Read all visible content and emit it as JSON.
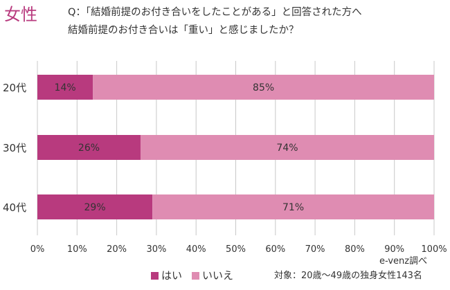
{
  "header": {
    "gender_label": "女性",
    "question_line1": "Q：「結婚前提のお付き合いをしたことがある」と回答された方へ",
    "question_line2": "結婚前提のお付き合いは「重い」と感じましたか？"
  },
  "colors": {
    "accent": "#b83a7e",
    "yes": "#b83a7e",
    "no": "#df8cb2",
    "grid": "#c8c8c8",
    "text": "#333333"
  },
  "chart_data": {
    "type": "bar",
    "orientation": "horizontal",
    "stacked": true,
    "percent_scale": true,
    "categories": [
      "20代",
      "30代",
      "40代"
    ],
    "series": [
      {
        "name": "はい",
        "values": [
          14,
          26,
          29
        ],
        "labels": [
          "14%",
          "26%",
          "29%"
        ]
      },
      {
        "name": "いいえ",
        "values": [
          85,
          74,
          71
        ],
        "labels": [
          "85%",
          "74%",
          "71%"
        ]
      }
    ],
    "xlim": [
      0,
      100
    ],
    "x_ticks": [
      0,
      10,
      20,
      30,
      40,
      50,
      60,
      70,
      80,
      90,
      100
    ],
    "x_tick_labels": [
      "0%",
      "10%",
      "20%",
      "30%",
      "40%",
      "50%",
      "60%",
      "70%",
      "80%",
      "90%",
      "100%"
    ],
    "grid": true,
    "legend_position": "bottom"
  },
  "footer": {
    "source": "e-venz調べ",
    "note": "対象：20歳〜49歳の独身女性143名"
  }
}
